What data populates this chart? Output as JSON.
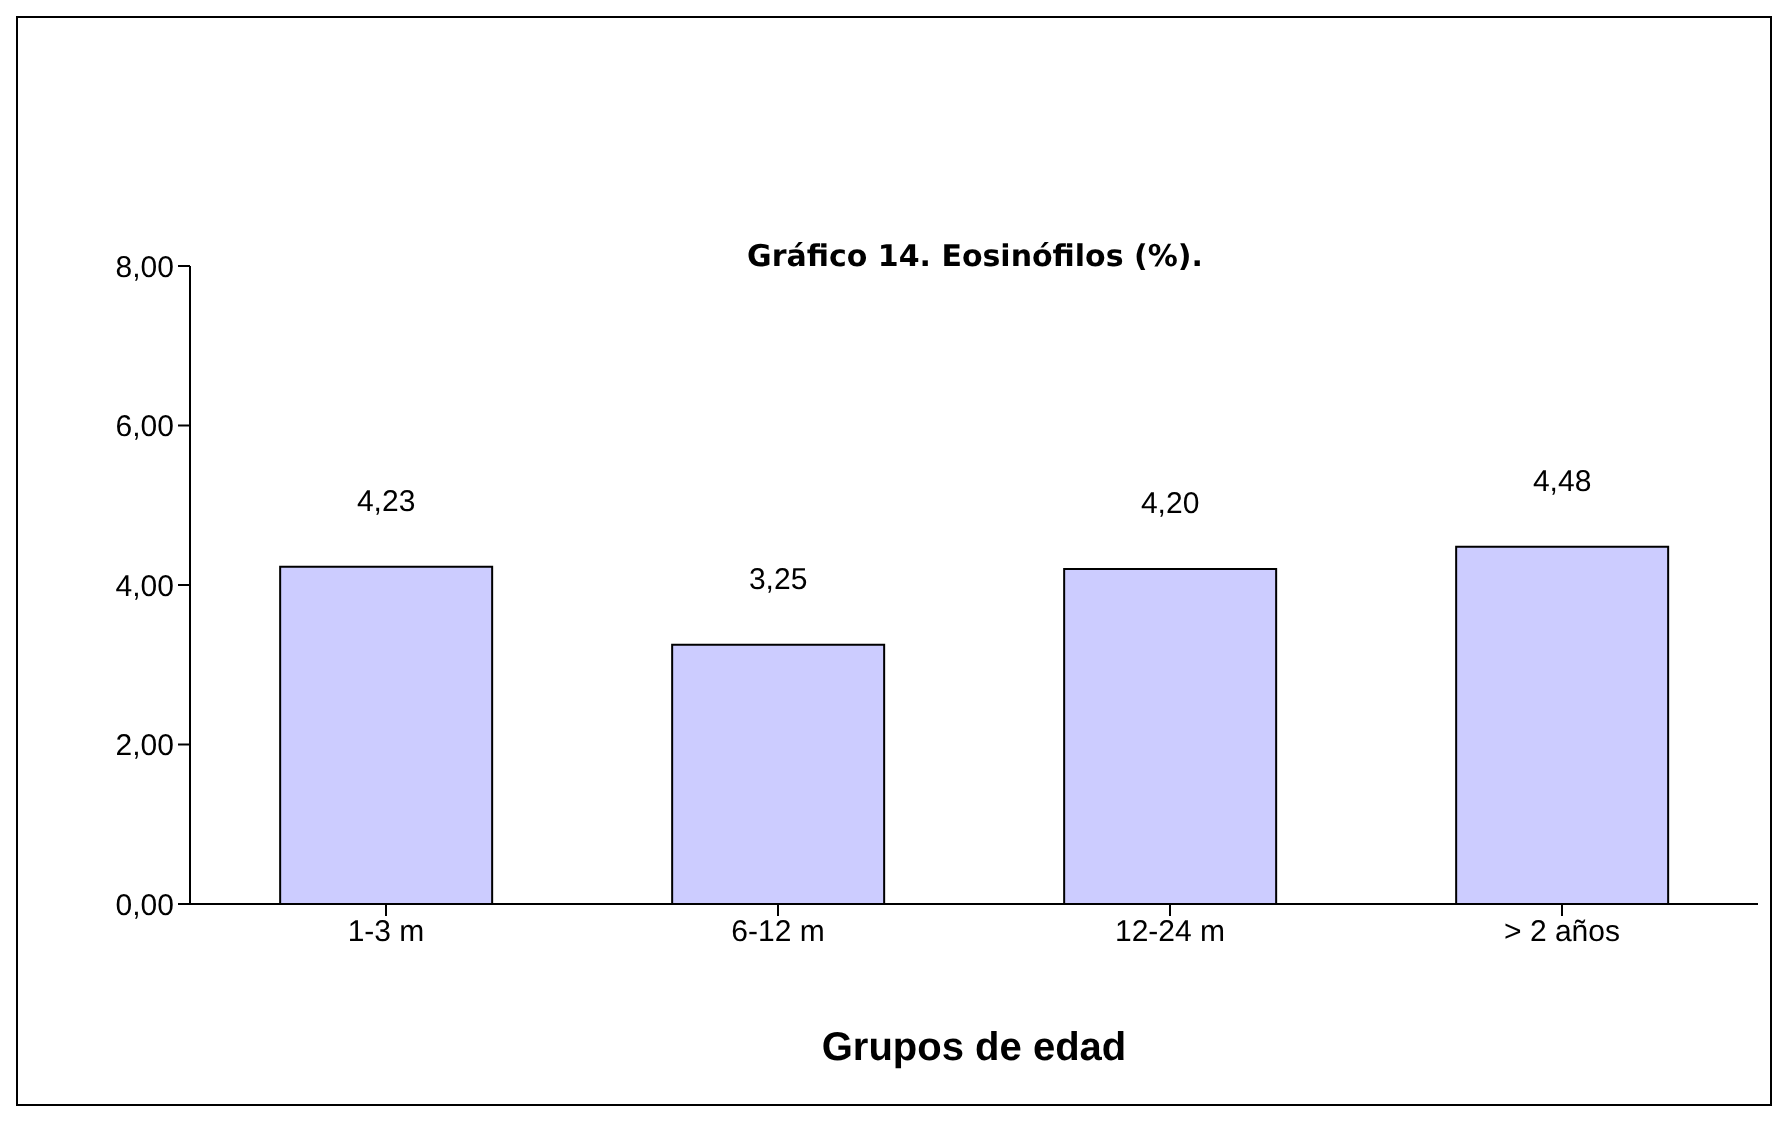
{
  "chart_data": {
    "type": "bar",
    "title": "Gráfico 14. Eosinófilos (%).",
    "xlabel": "Grupos de edad",
    "categories": [
      "1-3 m",
      "6-12 m",
      "12-24 m",
      "> 2 años"
    ],
    "values": [
      4.23,
      3.25,
      4.2,
      4.48
    ],
    "value_labels": [
      "4,23",
      "3,25",
      "4,20",
      "4,48"
    ],
    "color": "#ccccff",
    "ylim": [
      0,
      8
    ],
    "yticks": [
      {
        "value": 0,
        "label": "0,00"
      },
      {
        "value": 2,
        "label": "2,00"
      },
      {
        "value": 4,
        "label": "4,00"
      },
      {
        "value": 6,
        "label": "6,00"
      },
      {
        "value": 8,
        "label": "8,00"
      }
    ],
    "grid": false,
    "legend": false
  }
}
